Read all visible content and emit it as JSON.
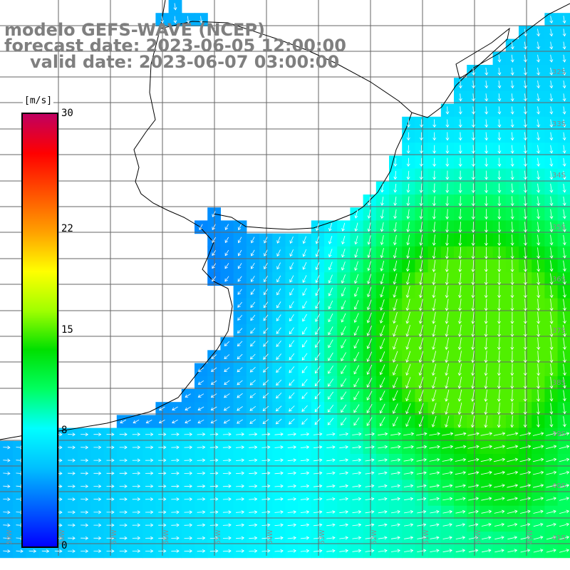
{
  "title": {
    "model": "modelo GEFS-WAVE (NCEP)",
    "forecast": "forecast date: 2023-06-05 12:00:00",
    "valid": "valid date: 2023-06-07 03:00:00"
  },
  "colorbar": {
    "unit": "[m/s]",
    "min": 0,
    "max": 30,
    "ticks": [
      {
        "value": 30,
        "label": "30"
      },
      {
        "value": 22,
        "label": "22"
      },
      {
        "value": 15,
        "label": "15"
      },
      {
        "value": 8,
        "label": "8"
      },
      {
        "value": 0,
        "label": "0"
      }
    ],
    "colors": [
      "#0000ff",
      "#0060ff",
      "#00c0ff",
      "#00ffff",
      "#00ff60",
      "#00e000",
      "#a0ff00",
      "#ffff00",
      "#ffa000",
      "#ff5000",
      "#ff0000",
      "#c00060"
    ]
  },
  "map": {
    "quantity": "wind speed and direction",
    "lat_labels": [
      "32S",
      "33S",
      "34S",
      "35S",
      "36S",
      "37S",
      "38S",
      "39S",
      "40S",
      "41S"
    ],
    "lon_labels": [
      "59W",
      "58W",
      "57W",
      "56W",
      "55W",
      "54W",
      "53W",
      "52W",
      "51W",
      "50W",
      "49W"
    ],
    "colors": {
      "land": "#ffffff",
      "grid": "#666666",
      "coast": "#000000",
      "arrow": "#ffffff",
      "title_text": "#7f7f7f"
    }
  }
}
